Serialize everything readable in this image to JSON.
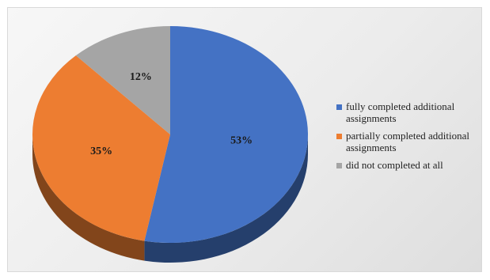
{
  "chart_data": {
    "type": "pie",
    "title": "",
    "slices": [
      {
        "name": "fully completed additional assignments",
        "value": 53,
        "label": "53%",
        "color": "#4472C4"
      },
      {
        "name": "partially completed additional assignments",
        "value": 35,
        "label": "35%",
        "color": "#ED7D31"
      },
      {
        "name": "did not completed at all",
        "value": 12,
        "label": "12%",
        "color": "#A5A5A5"
      }
    ],
    "legend_position": "right",
    "style": "3d"
  }
}
